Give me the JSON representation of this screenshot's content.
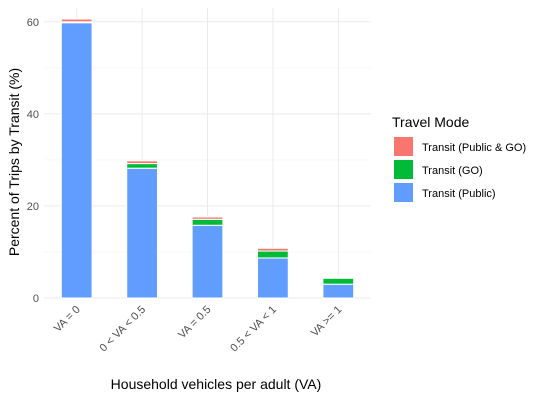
{
  "chart_data": {
    "type": "bar",
    "stacked": true,
    "xlabel": "Household vehicles per adult (VA)",
    "ylabel": "Percent of Trips by Transit (%)",
    "categories": [
      "VA = 0",
      "0 < VA < 0.5",
      "VA = 0.5",
      "0.5 < VA < 1",
      "VA >= 1"
    ],
    "ylim": [
      0,
      63
    ],
    "yticks": [
      0,
      20,
      40,
      60
    ],
    "grid": true,
    "legend": {
      "title": "Travel Mode",
      "position": "right",
      "entries": [
        {
          "name": "Transit (Public & GO)",
          "color": "#F8766D"
        },
        {
          "name": "Transit (GO)",
          "color": "#00BA38"
        },
        {
          "name": "Transit (Public)",
          "color": "#619CFF"
        }
      ]
    },
    "series": [
      {
        "name": "Transit (Public)",
        "color": "#619CFF",
        "values": [
          59.8,
          28.2,
          15.8,
          8.7,
          3.0
        ]
      },
      {
        "name": "Transit (GO)",
        "color": "#00BA38",
        "values": [
          0.2,
          1.0,
          1.3,
          1.5,
          1.3
        ]
      },
      {
        "name": "Transit (Public & GO)",
        "color": "#F8766D",
        "values": [
          0.6,
          0.6,
          0.5,
          0.6,
          0.2
        ]
      }
    ]
  }
}
